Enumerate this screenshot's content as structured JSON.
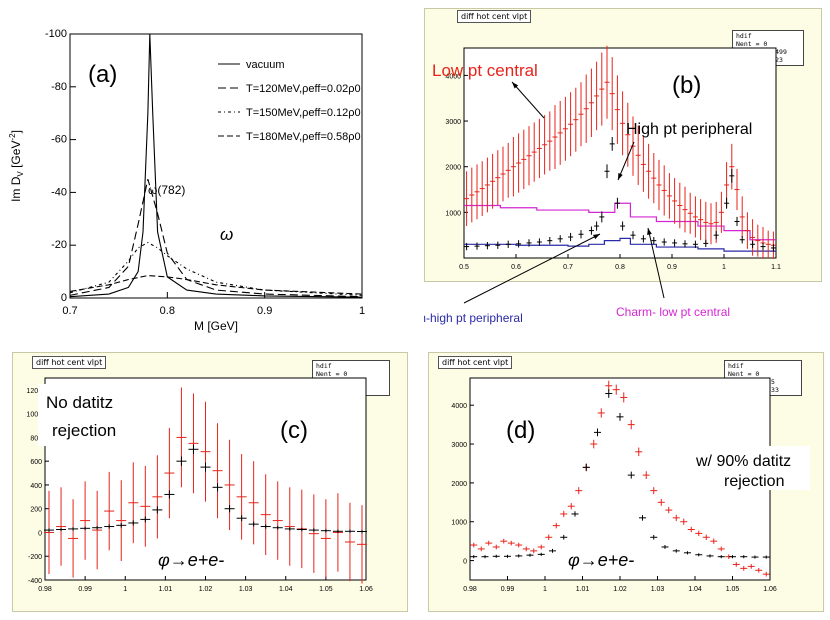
{
  "chart_data": [
    {
      "id": "a",
      "type": "line",
      "panel_label": "(a)",
      "xlabel": "M [GeV]",
      "ylabel_main": "Im D",
      "ylabel_sub": "V",
      "ylabel_unit": " [GeV",
      "ylabel_exp": "-2",
      "ylabel_end": "]",
      "xlim": [
        0.7,
        1.0
      ],
      "ylim": [
        0,
        -100
      ],
      "x_ticks": [
        0.7,
        0.8,
        0.9,
        1.0
      ],
      "x_tick_labels": [
        "0.7",
        "0.8",
        "0.9",
        "1"
      ],
      "y_ticks": [
        0,
        -20,
        -40,
        -60,
        -80,
        -100
      ],
      "y_tick_labels": [
        "0",
        "-20",
        "-40",
        "-60",
        "-80",
        "-100"
      ],
      "annotations": [
        "ω(782)",
        "ω"
      ],
      "legend": [
        "vacuum",
        "T=120MeV,ρeff=0.02ρ0",
        "T=150MeV,ρeff=0.12ρ0",
        "T=180MeV,ρeff=0.58ρ0"
      ],
      "series": [
        {
          "name": "vacuum",
          "x": [
            0.7,
            0.74,
            0.76,
            0.77,
            0.775,
            0.78,
            0.782,
            0.785,
            0.79,
            0.8,
            0.82,
            0.85,
            0.9,
            1.0
          ],
          "y": [
            -0.5,
            -1.5,
            -4,
            -10,
            -25,
            -70,
            -100,
            -70,
            -25,
            -8,
            -3,
            -1.5,
            -0.8,
            -0.3
          ]
        },
        {
          "name": "T=120MeV,ρeff=0.02ρ0",
          "x": [
            0.7,
            0.74,
            0.76,
            0.77,
            0.78,
            0.79,
            0.8,
            0.82,
            0.85,
            0.9,
            1.0
          ],
          "y": [
            -1,
            -4,
            -12,
            -28,
            -45,
            -32,
            -17,
            -7,
            -3,
            -1.5,
            -0.5
          ]
        },
        {
          "name": "T=150MeV,ρeff=0.12ρ0",
          "x": [
            0.7,
            0.74,
            0.76,
            0.77,
            0.78,
            0.79,
            0.8,
            0.82,
            0.85,
            0.9,
            1.0
          ],
          "y": [
            -2,
            -6,
            -14,
            -19,
            -21,
            -19,
            -16,
            -11,
            -6,
            -3,
            -1
          ]
        },
        {
          "name": "T=180MeV,ρeff=0.58ρ0",
          "x": [
            0.7,
            0.74,
            0.76,
            0.78,
            0.8,
            0.82,
            0.85,
            0.9,
            1.0
          ],
          "y": [
            -2.5,
            -5,
            -7,
            -8.5,
            -8,
            -7,
            -5,
            -3,
            -1.5
          ]
        }
      ]
    },
    {
      "id": "b",
      "type": "line",
      "panel_label": "(b)",
      "tab_title": "diff hot cent vlpt",
      "stats": [
        "hdif",
        "Nent = 0",
        "Mean = 0.7499",
        "RMS = 0.1323"
      ],
      "xlim": [
        0.5,
        1.1
      ],
      "ylim": [
        0,
        4600
      ],
      "x_ticks": [
        0.5,
        0.6,
        0.7,
        0.8,
        0.9,
        1.0,
        1.1
      ],
      "x_tick_labels": [
        "0.5",
        "0.6",
        "0.7",
        "0.8",
        "0.9",
        "1",
        "1.1"
      ],
      "y_ticks": [
        1000,
        2000,
        3000,
        4000
      ],
      "y_tick_labels": [
        "1000",
        "2000",
        "3000",
        "4000"
      ],
      "annotations": [
        "Low pt central",
        "High pt peripheral",
        "Charm-high pt peripheral",
        "Charm- low pt central"
      ],
      "annotation_colors": [
        "#e8231a",
        "#000000",
        "#2a2aa8",
        "#d426d4"
      ],
      "series": [
        {
          "color": "#e8231a",
          "x": [
            0.505,
            0.515,
            0.525,
            0.535,
            0.545,
            0.555,
            0.565,
            0.575,
            0.585,
            0.595,
            0.605,
            0.615,
            0.625,
            0.635,
            0.645,
            0.655,
            0.665,
            0.675,
            0.685,
            0.695,
            0.705,
            0.715,
            0.725,
            0.735,
            0.745,
            0.755,
            0.765,
            0.775,
            0.785,
            0.795,
            0.805,
            0.815,
            0.825,
            0.835,
            0.845,
            0.855,
            0.865,
            0.875,
            0.885,
            0.895,
            0.905,
            0.915,
            0.925,
            0.935,
            0.945,
            0.955,
            0.965,
            0.975,
            0.985,
            0.995,
            1.005,
            1.015,
            1.025,
            1.035,
            1.045,
            1.055,
            1.065,
            1.075,
            1.085,
            1.095
          ],
          "y": [
            1300,
            1380,
            1450,
            1520,
            1600,
            1680,
            1760,
            1840,
            1920,
            2000,
            2080,
            2160,
            2240,
            2320,
            2400,
            2480,
            2560,
            2650,
            2740,
            2830,
            2930,
            3030,
            3150,
            3270,
            3400,
            3550,
            3700,
            3850,
            3600,
            3250,
            2950,
            2700,
            2450,
            2250,
            2050,
            1900,
            1750,
            1600,
            1480,
            1360,
            1250,
            1150,
            1060,
            980,
            900,
            840,
            780,
            750,
            780,
            1000,
            1600,
            2000,
            1500,
            900,
            600,
            450,
            380,
            330,
            300,
            280
          ],
          "err": [
            600,
            600,
            600,
            600,
            600,
            600,
            600,
            600,
            600,
            650,
            650,
            650,
            650,
            650,
            650,
            650,
            650,
            700,
            700,
            700,
            700,
            700,
            700,
            750,
            750,
            750,
            800,
            800,
            800,
            750,
            700,
            700,
            650,
            650,
            600,
            600,
            550,
            550,
            550,
            500,
            500,
            500,
            500,
            450,
            450,
            450,
            450,
            450,
            450,
            450,
            500,
            500,
            450,
            450,
            400,
            400,
            350,
            350,
            300,
            300
          ]
        },
        {
          "color": "#000000",
          "x": [
            0.505,
            0.525,
            0.545,
            0.565,
            0.585,
            0.605,
            0.625,
            0.645,
            0.665,
            0.685,
            0.705,
            0.725,
            0.745,
            0.755,
            0.765,
            0.775,
            0.785,
            0.795,
            0.805,
            0.825,
            0.845,
            0.865,
            0.885,
            0.905,
            0.925,
            0.945,
            0.965,
            0.985,
            1.005,
            1.015,
            1.025,
            1.035,
            1.055,
            1.075,
            1.095
          ],
          "y": [
            250,
            260,
            270,
            280,
            300,
            310,
            330,
            350,
            380,
            420,
            460,
            520,
            600,
            700,
            900,
            1900,
            2500,
            1200,
            700,
            500,
            420,
            380,
            350,
            330,
            310,
            300,
            320,
            500,
            1200,
            1800,
            800,
            400,
            300,
            250,
            220
          ],
          "err": [
            80,
            80,
            80,
            80,
            80,
            80,
            80,
            80,
            80,
            80,
            90,
            90,
            90,
            100,
            120,
            150,
            150,
            120,
            100,
            90,
            80,
            80,
            80,
            80,
            80,
            80,
            80,
            90,
            120,
            150,
            100,
            80,
            80,
            80,
            80
          ]
        }
      ],
      "steps": [
        {
          "color": "#d426d4",
          "x": [
            0.5,
            0.57,
            0.64,
            0.74,
            0.79,
            0.82,
            0.87,
            0.95,
            1.0,
            1.05,
            1.1
          ],
          "y": [
            1150,
            1100,
            1050,
            1000,
            1200,
            900,
            800,
            700,
            600,
            400,
            250
          ]
        },
        {
          "color": "#2a2aa8",
          "x": [
            0.5,
            0.6,
            0.7,
            0.74,
            0.77,
            0.8,
            0.82,
            0.87,
            0.95,
            1.0,
            1.1
          ],
          "y": [
            300,
            280,
            260,
            300,
            380,
            430,
            300,
            240,
            200,
            150,
            120
          ]
        }
      ]
    },
    {
      "id": "c",
      "type": "line",
      "panel_label": "(c)",
      "tab_title": "diff hot cent vlpt",
      "stats": [
        "hdif",
        "Nent = 0",
        "Mean = 1.015",
        "RMS = 0.01492"
      ],
      "annotations": [
        "No datitz",
        "rejection",
        "φ→e+e-"
      ],
      "xlim": [
        0.98,
        1.06
      ],
      "ylim": [
        -400,
        1300
      ],
      "x_ticks": [
        0.98,
        0.99,
        1.0,
        1.01,
        1.02,
        1.03,
        1.04,
        1.05,
        1.06
      ],
      "x_tick_labels": [
        "0.98",
        "0.99",
        "1",
        "1.01",
        "1.02",
        "1.03",
        "1.04",
        "1.05",
        "1.06"
      ],
      "y_ticks": [
        -400,
        -200,
        0,
        200,
        400,
        600,
        800,
        1000,
        1200
      ],
      "y_tick_labels": [
        "-400",
        "-200",
        "0",
        "200",
        "400",
        "600",
        "800",
        "1000",
        "1200"
      ],
      "series": [
        {
          "color": "#e8231a",
          "x": [
            0.981,
            0.984,
            0.987,
            0.99,
            0.993,
            0.996,
            0.999,
            1.002,
            1.005,
            1.008,
            1.011,
            1.014,
            1.017,
            1.02,
            1.023,
            1.026,
            1.029,
            1.032,
            1.035,
            1.038,
            1.041,
            1.044,
            1.047,
            1.05,
            1.053,
            1.056,
            1.059
          ],
          "y": [
            0,
            50,
            -50,
            100,
            20,
            180,
            100,
            250,
            220,
            300,
            500,
            800,
            750,
            680,
            520,
            400,
            300,
            250,
            150,
            100,
            50,
            30,
            -10,
            -50,
            0,
            -80,
            -100
          ],
          "err": [
            350,
            330,
            330,
            330,
            330,
            330,
            340,
            340,
            340,
            350,
            380,
            420,
            420,
            420,
            400,
            380,
            360,
            350,
            340,
            330,
            330,
            330,
            330,
            330,
            330,
            330,
            330
          ]
        },
        {
          "color": "#000000",
          "x": [
            0.981,
            0.984,
            0.987,
            0.99,
            0.993,
            0.996,
            0.999,
            1.002,
            1.005,
            1.008,
            1.011,
            1.014,
            1.017,
            1.02,
            1.023,
            1.026,
            1.029,
            1.032,
            1.035,
            1.038,
            1.041,
            1.044,
            1.047,
            1.05,
            1.053,
            1.056,
            1.059
          ],
          "y": [
            20,
            25,
            30,
            35,
            40,
            50,
            60,
            80,
            110,
            190,
            320,
            600,
            700,
            550,
            380,
            200,
            120,
            70,
            50,
            40,
            30,
            25,
            20,
            15,
            10,
            10,
            8
          ],
          "err": [
            15,
            15,
            15,
            15,
            15,
            18,
            20,
            22,
            25,
            30,
            35,
            40,
            40,
            38,
            35,
            30,
            25,
            20,
            18,
            15,
            15,
            15,
            15,
            15,
            15,
            15,
            15
          ]
        }
      ]
    },
    {
      "id": "d",
      "type": "line",
      "panel_label": "(d)",
      "tab_title": "diff hot cent vlpt",
      "stats": [
        "hdif",
        "Nent = 0",
        "Mean = 1.015",
        "RMS = 0.01433"
      ],
      "annotations": [
        "w/ 90% datitz",
        "rejection",
        "φ→e+e-"
      ],
      "xlim": [
        0.98,
        1.06
      ],
      "ylim": [
        -500,
        4700
      ],
      "x_ticks": [
        0.98,
        0.99,
        1.0,
        1.01,
        1.02,
        1.03,
        1.04,
        1.05,
        1.06
      ],
      "x_tick_labels": [
        "0.98",
        "0.99",
        "1",
        "1.01",
        "1.02",
        "1.03",
        "1.04",
        "1.05",
        "1.06"
      ],
      "y_ticks": [
        0,
        1000,
        2000,
        3000,
        4000
      ],
      "y_tick_labels": [
        "0",
        "1000",
        "2000",
        "3000",
        "4000"
      ],
      "series": [
        {
          "color": "#e8231a",
          "x": [
            0.981,
            0.983,
            0.985,
            0.987,
            0.989,
            0.991,
            0.993,
            0.995,
            0.997,
            0.999,
            1.001,
            1.003,
            1.005,
            1.007,
            1.009,
            1.011,
            1.013,
            1.015,
            1.017,
            1.019,
            1.021,
            1.023,
            1.025,
            1.027,
            1.029,
            1.031,
            1.033,
            1.035,
            1.037,
            1.039,
            1.041,
            1.043,
            1.045,
            1.047,
            1.049,
            1.051,
            1.053,
            1.055,
            1.057,
            1.059
          ],
          "y": [
            400,
            300,
            450,
            350,
            500,
            450,
            400,
            300,
            250,
            350,
            600,
            900,
            1200,
            1400,
            1800,
            2400,
            3000,
            3800,
            4500,
            4400,
            4200,
            3500,
            2800,
            2200,
            1800,
            1500,
            1300,
            1100,
            1000,
            800,
            700,
            600,
            500,
            300,
            100,
            -100,
            -200,
            -150,
            -250,
            -350
          ],
          "err": [
            60,
            60,
            60,
            60,
            60,
            60,
            60,
            60,
            60,
            60,
            70,
            70,
            80,
            80,
            90,
            100,
            110,
            120,
            130,
            130,
            130,
            120,
            110,
            100,
            90,
            90,
            80,
            80,
            80,
            70,
            70,
            70,
            70,
            60,
            60,
            60,
            60,
            60,
            60,
            60
          ]
        },
        {
          "color": "#000000",
          "x": [
            0.981,
            0.984,
            0.987,
            0.99,
            0.993,
            0.996,
            0.999,
            1.002,
            1.005,
            1.008,
            1.011,
            1.014,
            1.017,
            1.02,
            1.023,
            1.026,
            1.029,
            1.032,
            1.035,
            1.038,
            1.041,
            1.044,
            1.047,
            1.05,
            1.053,
            1.056,
            1.059
          ],
          "y": [
            100,
            100,
            110,
            110,
            120,
            140,
            160,
            250,
            600,
            1200,
            2400,
            3300,
            4300,
            3700,
            2200,
            1100,
            600,
            350,
            250,
            200,
            150,
            120,
            100,
            100,
            100,
            90,
            90
          ],
          "err": [
            40,
            40,
            40,
            40,
            40,
            40,
            40,
            50,
            60,
            70,
            90,
            100,
            110,
            100,
            90,
            70,
            60,
            50,
            45,
            40,
            40,
            40,
            40,
            40,
            40,
            40,
            40
          ]
        }
      ]
    }
  ]
}
